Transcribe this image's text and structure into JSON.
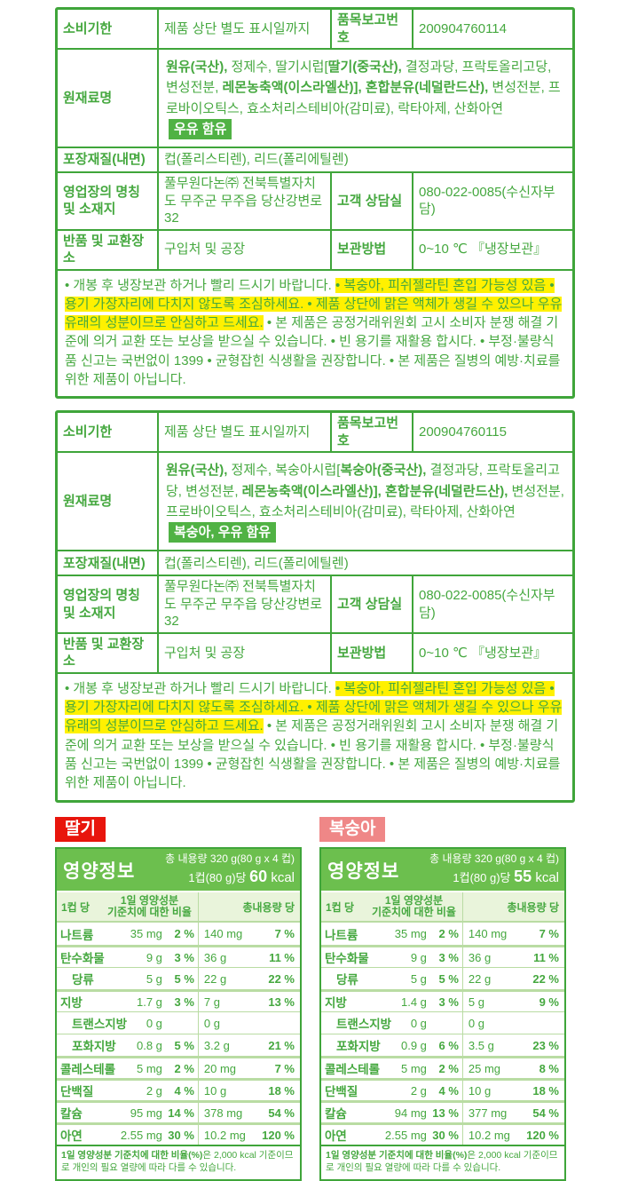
{
  "colors": {
    "brand_green": "#3fa53a",
    "header_green": "#6cbf4e",
    "badge_green": "#50b244",
    "highlight_yellow": "#fff100",
    "strawberry_red": "#e8150c",
    "peach_salmon": "#ef8787"
  },
  "product_sections": [
    {
      "expiry": {
        "label": "소비기한",
        "value": "제품 상단 별도 표시일까지"
      },
      "report_no": {
        "label": "품목보고번호",
        "value": "200904760114"
      },
      "ingredients": {
        "label": "원재료명",
        "segments": [
          {
            "t": "원유(국산),",
            "b": true
          },
          {
            "t": " 정제수, 딸기시럽[",
            "b": false
          },
          {
            "t": "딸기(중국산),",
            "b": true
          },
          {
            "t": " 결정과당, 프락토올리고당, 변성전분, ",
            "b": false
          },
          {
            "t": "레몬농축액(이스라엘산)],",
            "b": true
          },
          {
            "t": " ",
            "b": false
          },
          {
            "t": "혼합분유(네덜란드산),",
            "b": true
          },
          {
            "t": " 변성전분, 프로바이오틱스, 효소처리스테비아(감미료), 락타아제, 산화아연",
            "b": false
          }
        ],
        "allergen_badge": "우유 함유"
      },
      "packaging": {
        "label": "포장재질(내면)",
        "value": "컵(폴리스티렌), 리드(폴리에틸렌)"
      },
      "business": {
        "label": "영업장의 명칭 및 소재지",
        "value": "풀무원다논㈜ 전북특별자치도 무주군 무주읍 당산강변로 32"
      },
      "customer_service": {
        "label": "고객 상담실",
        "value": "080-022-0085(수신자부담)"
      },
      "returns": {
        "label": "반품 및 교환장소",
        "value": "구입처 및 공장"
      },
      "storage": {
        "label": "보관방법",
        "value": "0~10 ℃ 『냉장보관』"
      },
      "notes_segments": [
        {
          "t": "• 개봉 후 냉장보관 하거나 빨리 드시기 바랍니다. ",
          "hl": false
        },
        {
          "t": "• 복숭아, 피쉬젤라틴 혼입 가능성 있음 • 용기 가장자리에 다치지 않도록 조심하세요. • 제품 상단에 맑은 액체가 생길 수 있으나 우유 유래의 성분이므로 안심하고 드세요.",
          "hl": true
        },
        {
          "t": " • 본 제품은 공정거래위원회 고시 소비자 분쟁 해결 기준에 의거 교환 또는 보상을 받으실 수 있습니다. • 빈 용기를 재활용 합시다. • 부정·불량식품 신고는 국번없이 1399 • 균형잡힌 식생활을 권장합니다. • 본 제품은 질병의 예방·치료를 위한 제품이 아닙니다.",
          "hl": false
        }
      ]
    },
    {
      "expiry": {
        "label": "소비기한",
        "value": "제품 상단 별도 표시일까지"
      },
      "report_no": {
        "label": "품목보고번호",
        "value": "200904760115"
      },
      "ingredients": {
        "label": "원재료명",
        "segments": [
          {
            "t": "원유(국산),",
            "b": true
          },
          {
            "t": " 정제수, 복숭아시럽[",
            "b": false
          },
          {
            "t": "복숭아(중국산),",
            "b": true
          },
          {
            "t": " 결정과당, 프락토올리고당, 변성전분, ",
            "b": false
          },
          {
            "t": "레몬농축액(이스라엘산)],",
            "b": true
          },
          {
            "t": " ",
            "b": false
          },
          {
            "t": "혼합분유(네덜란드산),",
            "b": true
          },
          {
            "t": " 변성전분, 프로바이오틱스, 효소처리스테비아(감미료), 락타아제, 산화아연",
            "b": false
          }
        ],
        "allergen_badge": "복숭아, 우유 함유"
      },
      "packaging": {
        "label": "포장재질(내면)",
        "value": "컵(폴리스티렌), 리드(폴리에틸렌)"
      },
      "business": {
        "label": "영업장의 명칭 및 소재지",
        "value": "풀무원다논㈜ 전북특별자치도 무주군 무주읍 당산강변로 32"
      },
      "customer_service": {
        "label": "고객 상담실",
        "value": "080-022-0085(수신자부담)"
      },
      "returns": {
        "label": "반품 및 교환장소",
        "value": "구입처 및 공장"
      },
      "storage": {
        "label": "보관방법",
        "value": "0~10 ℃ 『냉장보관』"
      },
      "notes_segments": [
        {
          "t": "• 개봉 후 냉장보관 하거나 빨리 드시기 바랍니다. ",
          "hl": false
        },
        {
          "t": "• 복숭아, 피쉬젤라틴 혼입 가능성 있음 • 용기 가장자리에 다치지 않도록 조심하세요. • 제품 상단에 맑은 액체가 생길 수 있으나 우유 유래의 성분이므로 안심하고 드세요.",
          "hl": true
        },
        {
          "t": " • 본 제품은 공정거래위원회 고시 소비자 분쟁 해결 기준에 의거 교환 또는 보상을 받으실 수 있습니다. • 빈 용기를 재활용 합시다. • 부정·불량식품 신고는 국번없이 1399 • 균형잡힌 식생활을 권장합니다. • 본 제품은 질병의 예방·치료를 위한 제품이 아닙니다.",
          "hl": false
        }
      ]
    }
  ],
  "nutrition_sections": [
    {
      "flavor": "딸기",
      "flavor_color": "#e8150c",
      "title": "영양정보",
      "total_amount": "총 내용량 320 g(80 g x 4 컵)",
      "serving_prefix": "1컵(80 g)당 ",
      "kcal": "60",
      "kcal_unit": " kcal",
      "col_serving": "1컵 당",
      "col_daily_line1": "1일 영양성분",
      "col_daily_line2": "기준치에 대한 비율",
      "col_total": "총내용량 당",
      "rows": [
        {
          "name": "나트륨",
          "amt": "35 mg",
          "pct": "2 %",
          "amt2": "140 mg",
          "pct2": "7 %",
          "sep": "thick",
          "indent": false
        },
        {
          "name": "탄수화물",
          "amt": "9 g",
          "pct": "3 %",
          "amt2": "36 g",
          "pct2": "11 %",
          "sep": "thick",
          "indent": false
        },
        {
          "name": "당류",
          "amt": "5 g",
          "pct": "5 %",
          "amt2": "22 g",
          "pct2": "22 %",
          "sep": "thin",
          "indent": true
        },
        {
          "name": "지방",
          "amt": "1.7 g",
          "pct": "3 %",
          "amt2": "7 g",
          "pct2": "13 %",
          "sep": "thick",
          "indent": false
        },
        {
          "name": "트랜스지방",
          "amt": "0 g",
          "pct": "",
          "amt2": "0 g",
          "pct2": "",
          "sep": "thin",
          "indent": true
        },
        {
          "name": "포화지방",
          "amt": "0.8 g",
          "pct": "5 %",
          "amt2": "3.2 g",
          "pct2": "21 %",
          "sep": "thin",
          "indent": true
        },
        {
          "name": "콜레스테롤",
          "amt": "5 mg",
          "pct": "2 %",
          "amt2": "20 mg",
          "pct2": "7 %",
          "sep": "thick",
          "indent": false
        },
        {
          "name": "단백질",
          "amt": "2 g",
          "pct": "4 %",
          "amt2": "10 g",
          "pct2": "18 %",
          "sep": "thick",
          "indent": false
        },
        {
          "name": "칼슘",
          "amt": "95 mg",
          "pct": "14 %",
          "amt2": "378 mg",
          "pct2": "54 %",
          "sep": "thick",
          "indent": false
        },
        {
          "name": "아연",
          "amt": "2.55 mg",
          "pct": "30 %",
          "amt2": "10.2 mg",
          "pct2": "120 %",
          "sep": "thick",
          "indent": false
        }
      ],
      "footnote_bold": "1일 영양성분 기준치에 대한 비율(%)",
      "footnote_rest": "은 2,000 kcal 기준이므로 개인의 필요 열량에 따라 다를 수 있습니다."
    },
    {
      "flavor": "복숭아",
      "flavor_color": "#ef8787",
      "title": "영양정보",
      "total_amount": "총 내용량 320 g(80 g x 4 컵)",
      "serving_prefix": "1컵(80 g)당 ",
      "kcal": "55",
      "kcal_unit": " kcal",
      "col_serving": "1컵 당",
      "col_daily_line1": "1일 영양성분",
      "col_daily_line2": "기준치에 대한 비율",
      "col_total": "총내용량 당",
      "rows": [
        {
          "name": "나트륨",
          "amt": "35 mg",
          "pct": "2 %",
          "amt2": "140 mg",
          "pct2": "7 %",
          "sep": "thick",
          "indent": false
        },
        {
          "name": "탄수화물",
          "amt": "9 g",
          "pct": "3 %",
          "amt2": "36 g",
          "pct2": "11 %",
          "sep": "thick",
          "indent": false
        },
        {
          "name": "당류",
          "amt": "5 g",
          "pct": "5 %",
          "amt2": "22 g",
          "pct2": "22 %",
          "sep": "thin",
          "indent": true
        },
        {
          "name": "지방",
          "amt": "1.4 g",
          "pct": "3 %",
          "amt2": "5 g",
          "pct2": "9 %",
          "sep": "thick",
          "indent": false
        },
        {
          "name": "트랜스지방",
          "amt": "0 g",
          "pct": "",
          "amt2": "0 g",
          "pct2": "",
          "sep": "thin",
          "indent": true
        },
        {
          "name": "포화지방",
          "amt": "0.9 g",
          "pct": "6 %",
          "amt2": "3.5 g",
          "pct2": "23 %",
          "sep": "thin",
          "indent": true
        },
        {
          "name": "콜레스테롤",
          "amt": "5 mg",
          "pct": "2 %",
          "amt2": "25 mg",
          "pct2": "8 %",
          "sep": "thick",
          "indent": false
        },
        {
          "name": "단백질",
          "amt": "2 g",
          "pct": "4 %",
          "amt2": "10 g",
          "pct2": "18 %",
          "sep": "thick",
          "indent": false
        },
        {
          "name": "칼슘",
          "amt": "94 mg",
          "pct": "13 %",
          "amt2": "377 mg",
          "pct2": "54 %",
          "sep": "thick",
          "indent": false
        },
        {
          "name": "아연",
          "amt": "2.55 mg",
          "pct": "30 %",
          "amt2": "10.2 mg",
          "pct2": "120 %",
          "sep": "thick",
          "indent": false
        }
      ],
      "footnote_bold": "1일 영양성분 기준치에 대한 비율(%)",
      "footnote_rest": "은 2,000 kcal 기준이므로 개인의 필요 열량에 따라 다를 수 있습니다."
    }
  ]
}
